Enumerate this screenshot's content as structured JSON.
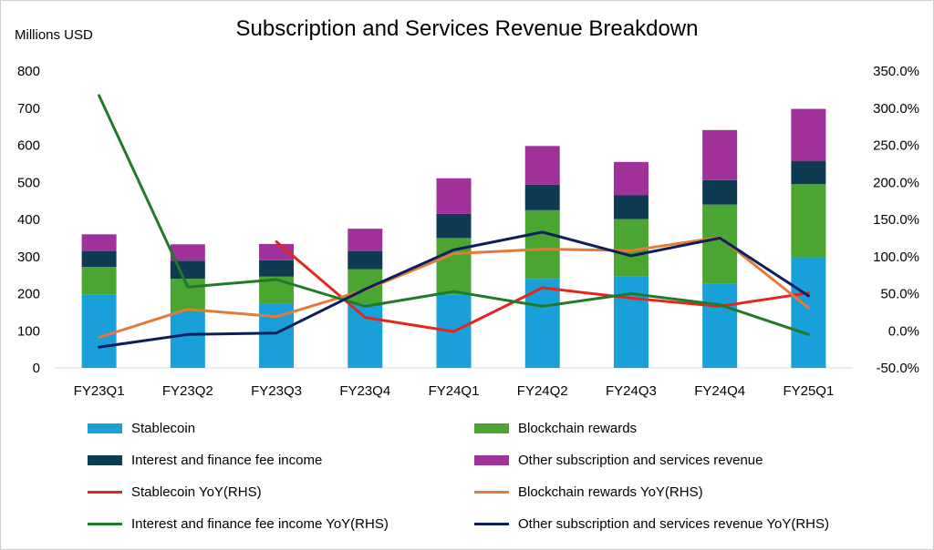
{
  "chart_data": {
    "type": "bar",
    "title": "Subscription and Services Revenue Breakdown",
    "ylabel": "Millions USD",
    "categories": [
      "FY23Q1",
      "FY23Q2",
      "FY23Q3",
      "FY23Q4",
      "FY24Q1",
      "FY24Q2",
      "FY24Q3",
      "FY24Q4",
      "FY25Q1"
    ],
    "ylim": [
      0,
      800
    ],
    "yticks": [
      "0",
      "100",
      "200",
      "300",
      "400",
      "500",
      "600",
      "700",
      "800"
    ],
    "y2lim": [
      -50,
      350
    ],
    "y2ticks": [
      "-50.0%",
      "0.0%",
      "50.0%",
      "100.0%",
      "150.0%",
      "200.0%",
      "250.0%",
      "300.0%",
      "350.0%"
    ],
    "bar_series": [
      {
        "name": "Stablecoin",
        "color": "#1aa0d8",
        "values": [
          198,
          151,
          172,
          172,
          198,
          240,
          247,
          226,
          298
        ]
      },
      {
        "name": "Blockchain rewards",
        "color": "#4aa531",
        "values": [
          74,
          89,
          74,
          94,
          152,
          185,
          154,
          214,
          197
        ]
      },
      {
        "name": "Interest and finance fee income",
        "color": "#0e3a52",
        "values": [
          43,
          49,
          44,
          49,
          65,
          69,
          64,
          66,
          63
        ]
      },
      {
        "name": "Other subscription and services revenue",
        "color": "#a0309a",
        "values": [
          45,
          44,
          44,
          60,
          96,
          104,
          90,
          135,
          140
        ]
      }
    ],
    "line_series": [
      {
        "name": "Stablecoin YoY(RHS)",
        "color": "#e5261f",
        "values": [
          null,
          null,
          120,
          18,
          -1,
          58,
          44,
          33,
          51
        ]
      },
      {
        "name": "Blockchain rewards YoY(RHS)",
        "color": "#e07b39",
        "values": [
          -9,
          29,
          19,
          55,
          104,
          110,
          108,
          126,
          31
        ]
      },
      {
        "name": "Interest and finance fee income YoY(RHS)",
        "color": "#207a2a",
        "values": [
          317,
          59,
          69,
          33,
          53,
          33,
          50,
          35,
          -5
        ]
      },
      {
        "name": "Other subscription and services revenue YoY(RHS)",
        "color": "#0b1f5c",
        "values": [
          -22,
          -5,
          -3,
          56,
          109,
          133,
          101,
          125,
          47
        ]
      }
    ]
  }
}
